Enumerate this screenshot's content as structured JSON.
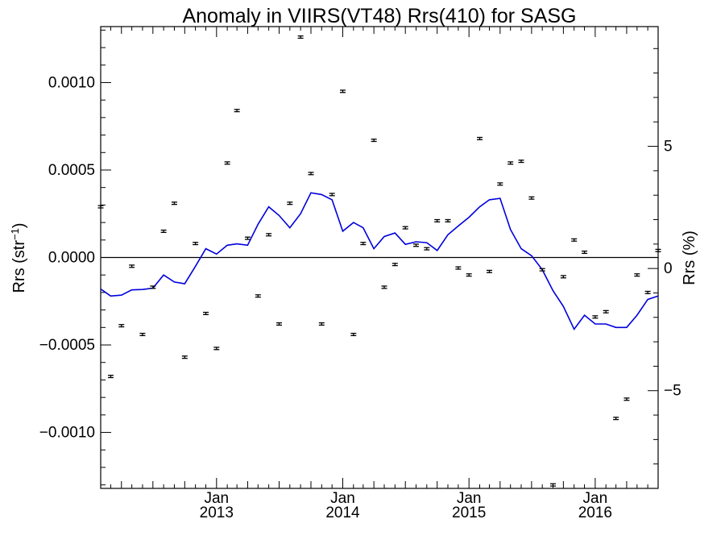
{
  "chart_data": {
    "type": "scatter",
    "title": "Anomaly in VIIRS(VT48) Rrs(410) for SASG",
    "ylabel": "Rrs (str",
    "ylabel_sup": "−1",
    "ylabel_close": ")",
    "y2label": "Rrs (%)",
    "xlim": [
      "2012-02-01",
      "2016-07-01"
    ],
    "ylim": [
      -0.00132,
      0.00132
    ],
    "y2lim": [
      -9.0,
      9.9
    ],
    "grid": false,
    "zero_line": true,
    "x_ticks": [
      {
        "date": "2013-01-01",
        "month": "Jan",
        "year": "2013"
      },
      {
        "date": "2014-01-01",
        "month": "Jan",
        "year": "2014"
      },
      {
        "date": "2015-01-01",
        "month": "Jan",
        "year": "2015"
      },
      {
        "date": "2016-01-01",
        "month": "Jan",
        "year": "2016"
      }
    ],
    "y_ticks": [
      {
        "value": 0.001,
        "label": "0.0010"
      },
      {
        "value": 0.0005,
        "label": "0.0005"
      },
      {
        "value": 0.0,
        "label": "0.0000"
      },
      {
        "value": -0.0005,
        "label": "−0.0005"
      },
      {
        "value": -0.001,
        "label": "−0.0010"
      }
    ],
    "y2_ticks": [
      {
        "value": 5,
        "label": "5"
      },
      {
        "value": 0,
        "label": "0"
      },
      {
        "value": -5,
        "label": "−5"
      }
    ],
    "series": [
      {
        "kind": "points_with_error_bars",
        "color": "#000000",
        "error": 6.5e-06,
        "x": [
          "2012-02-01",
          "2012-03-01",
          "2012-04-01",
          "2012-05-01",
          "2012-06-01",
          "2012-07-01",
          "2012-08-01",
          "2012-09-01",
          "2012-10-01",
          "2012-11-01",
          "2012-12-01",
          "2013-01-01",
          "2013-02-01",
          "2013-03-01",
          "2013-04-01",
          "2013-05-01",
          "2013-06-01",
          "2013-07-01",
          "2013-08-01",
          "2013-09-01",
          "2013-10-01",
          "2013-11-01",
          "2013-12-01",
          "2014-01-01",
          "2014-02-01",
          "2014-03-01",
          "2014-04-01",
          "2014-05-01",
          "2014-06-01",
          "2014-07-01",
          "2014-08-01",
          "2014-09-01",
          "2014-10-01",
          "2014-11-01",
          "2014-12-01",
          "2015-01-01",
          "2015-02-01",
          "2015-03-01",
          "2015-04-01",
          "2015-05-01",
          "2015-06-01",
          "2015-07-01",
          "2015-08-01",
          "2015-09-01",
          "2015-10-01",
          "2015-11-01",
          "2015-12-01",
          "2016-01-01",
          "2016-02-01",
          "2016-03-01",
          "2016-04-01",
          "2016-05-01",
          "2016-06-01",
          "2016-07-01"
        ],
        "y": [
          0.00029,
          -0.00068,
          -0.00039,
          -5e-05,
          -0.00044,
          -0.00017,
          0.00015,
          0.00031,
          -0.00057,
          8e-05,
          -0.00032,
          -0.00052,
          0.00054,
          0.00084,
          0.00011,
          -0.00022,
          0.00013,
          -0.00038,
          0.00031,
          0.00126,
          0.00048,
          -0.00038,
          0.00036,
          0.00095,
          -0.00044,
          8e-05,
          0.00067,
          -0.00017,
          -4e-05,
          0.00017,
          7e-05,
          5e-05,
          0.00021,
          0.00021,
          -6e-05,
          -0.0001,
          0.00068,
          -8e-05,
          0.00042,
          0.00054,
          0.00055,
          0.00034,
          -7e-05,
          -0.0013,
          -0.00011,
          0.0001,
          3e-05,
          -0.00034,
          -0.00031,
          -0.00092,
          -0.00081,
          -0.0001,
          -0.0002,
          4e-05
        ]
      },
      {
        "kind": "line",
        "color": "#0000dd",
        "x": [
          "2012-02-01",
          "2012-03-01",
          "2012-04-01",
          "2012-05-01",
          "2012-06-01",
          "2012-07-01",
          "2012-08-01",
          "2012-09-01",
          "2012-10-01",
          "2012-11-01",
          "2012-12-01",
          "2013-01-01",
          "2013-02-01",
          "2013-03-01",
          "2013-04-01",
          "2013-05-01",
          "2013-06-01",
          "2013-07-01",
          "2013-08-01",
          "2013-09-01",
          "2013-10-01",
          "2013-11-01",
          "2013-12-01",
          "2014-01-01",
          "2014-02-01",
          "2014-03-01",
          "2014-04-01",
          "2014-05-01",
          "2014-06-01",
          "2014-07-01",
          "2014-08-01",
          "2014-09-01",
          "2014-10-01",
          "2014-11-01",
          "2014-12-01",
          "2015-01-01",
          "2015-02-01",
          "2015-03-01",
          "2015-04-01",
          "2015-05-01",
          "2015-06-01",
          "2015-07-01",
          "2015-08-01",
          "2015-09-01",
          "2015-10-01",
          "2015-11-01",
          "2015-12-01",
          "2016-01-01",
          "2016-02-01",
          "2016-03-01",
          "2016-04-01",
          "2016-05-01",
          "2016-06-01",
          "2016-07-01"
        ],
        "y": [
          -0.00018,
          -0.00022,
          -0.000215,
          -0.000185,
          -0.000183,
          -0.000175,
          -0.0001,
          -0.00014,
          -0.00015,
          -5e-05,
          5e-05,
          2e-05,
          7e-05,
          7.8e-05,
          7e-05,
          0.00019,
          0.00029,
          0.00024,
          0.00017,
          0.00025,
          0.00037,
          0.00036,
          0.00033,
          0.00015,
          0.0002,
          0.00017,
          5e-05,
          0.00012,
          0.00014,
          7.5e-05,
          9e-05,
          8.5e-05,
          4e-05,
          0.00013,
          0.00018,
          0.00023,
          0.00029,
          0.00033,
          0.000338,
          0.00016,
          5e-05,
          1e-05,
          -7e-05,
          -0.00019,
          -0.00028,
          -0.00041,
          -0.00033,
          -0.00038,
          -0.00038,
          -0.0004,
          -0.0004,
          -0.00033,
          -0.00024,
          -0.00022
        ]
      }
    ]
  }
}
